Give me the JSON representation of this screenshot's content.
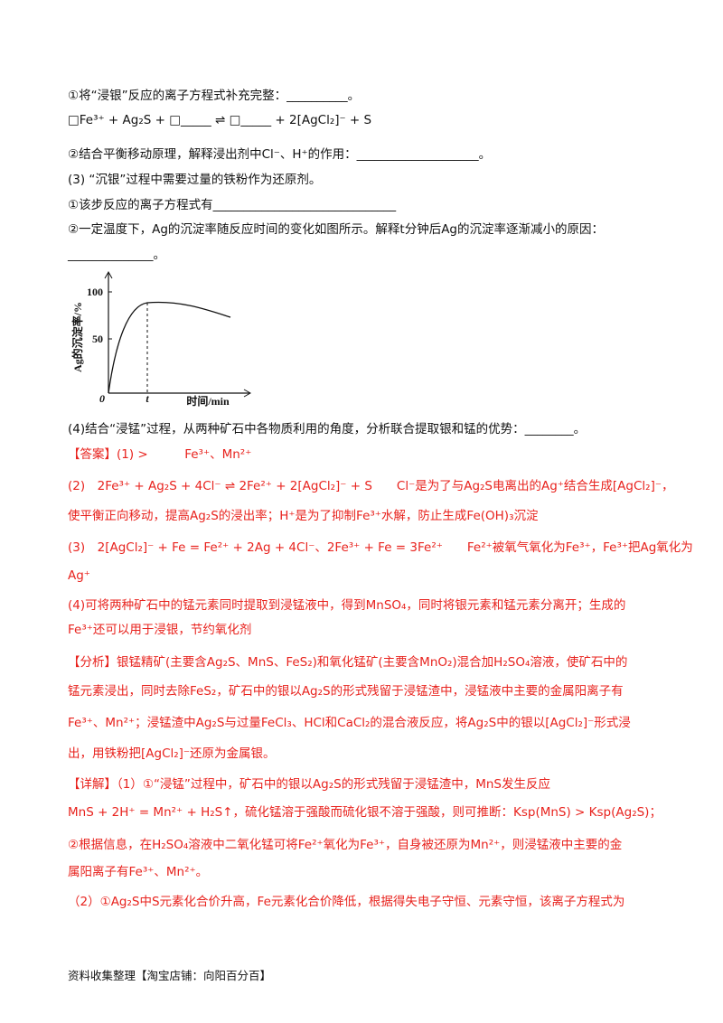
{
  "question": [
    "①将“浸银”反应的离子方程式补充完整：__________。",
    "□Fe³⁺ + Ag₂S + □_____ ⇌ □_____ + 2[AgCl₂]⁻ + S",
    "②结合平衡移动原理，解释浸出剂中Cl⁻、H⁺的作用：____________________。",
    "(3) “沉银”过程中需要过量的铁粉作为还原剂。",
    "①该步反应的离子方程式有______________________________",
    "②一定温度下，Ag的沉淀率随反应时间的变化如图所示。解释t分钟后Ag的沉淀率逐渐减小的原因：",
    "______________。",
    "(4)结合“浸锰”过程，从两种矿石中各物质利用的角度，分析联合提取银和锰的优势：________。"
  ],
  "figure": {
    "y_label": "Ag的沉淀率/%",
    "y_tick_top": "100",
    "y_tick_mid": "50",
    "origin": "0",
    "t_label": "t",
    "x_label": "时间/min"
  },
  "answer": [
    "【答案】(1) >　　　Fe³⁺、Mn²⁺",
    "(2)　2Fe³⁺ + Ag₂S + 4Cl⁻ ⇌ 2Fe²⁺ + 2[AgCl₂]⁻ + S　　Cl⁻是为了与Ag₂S电离出的Ag⁺结合生成[AgCl₂]⁻，",
    "使平衡正向移动，提高Ag₂S的浸出率；H⁺是为了抑制Fe³⁺水解，防止生成Fe(OH)₃沉淀",
    "(3)　2[AgCl₂]⁻ + Fe = Fe²⁺ + 2Ag + 4Cl⁻、2Fe³⁺ + Fe = 3Fe²⁺　　Fe²⁺被氧气氧化为Fe³⁺，Fe³⁺把Ag氧化为",
    "Ag⁺",
    "(4)可将两种矿石中的锰元素同时提取到浸锰液中，得到MnSO₄，同时将银元素和锰元素分离开；生成的",
    "Fe³⁺还可以用于浸银，节约氧化剂",
    "【分析】银锰精矿(主要含Ag₂S、MnS、FeS₂)和氧化锰矿(主要含MnO₂)混合加H₂SO₄溶液，使矿石中的",
    "锰元素浸出，同时去除FeS₂，矿石中的银以Ag₂S的形式残留于浸锰渣中，浸锰液中主要的金属阳离子有",
    "Fe³⁺、Mn²⁺；浸锰渣中Ag₂S与过量FeCl₃、HCl和CaCl₂的混合液反应，将Ag₂S中的银以[AgCl₂]⁻形式浸",
    "出，用铁粉把[AgCl₂]⁻还原为金属银。",
    "【详解】（1）①“浸锰”过程中，矿石中的银以Ag₂S的形式残留于浸锰渣中，MnS发生反应",
    "MnS + 2H⁺ = Mn²⁺ + H₂S↑，硫化锰溶于强酸而硫化银不溶于强酸，则可推断：Ksp(MnS) > Ksp(Ag₂S)；",
    "②根据信息，在H₂SO₄溶液中二氧化锰可将Fe²⁺氧化为Fe³⁺，自身被还原为Mn²⁺，则浸锰液中主要的金",
    "属阳离子有Fe³⁺、Mn²⁺。",
    "（2）①Ag₂S中S元素化合价升高，Fe元素化合价降低，根据得失电子守恒、元素守恒，该离子方程式为"
  ],
  "footer": "资料收集整理【淘宝店铺：向阳百分百】"
}
